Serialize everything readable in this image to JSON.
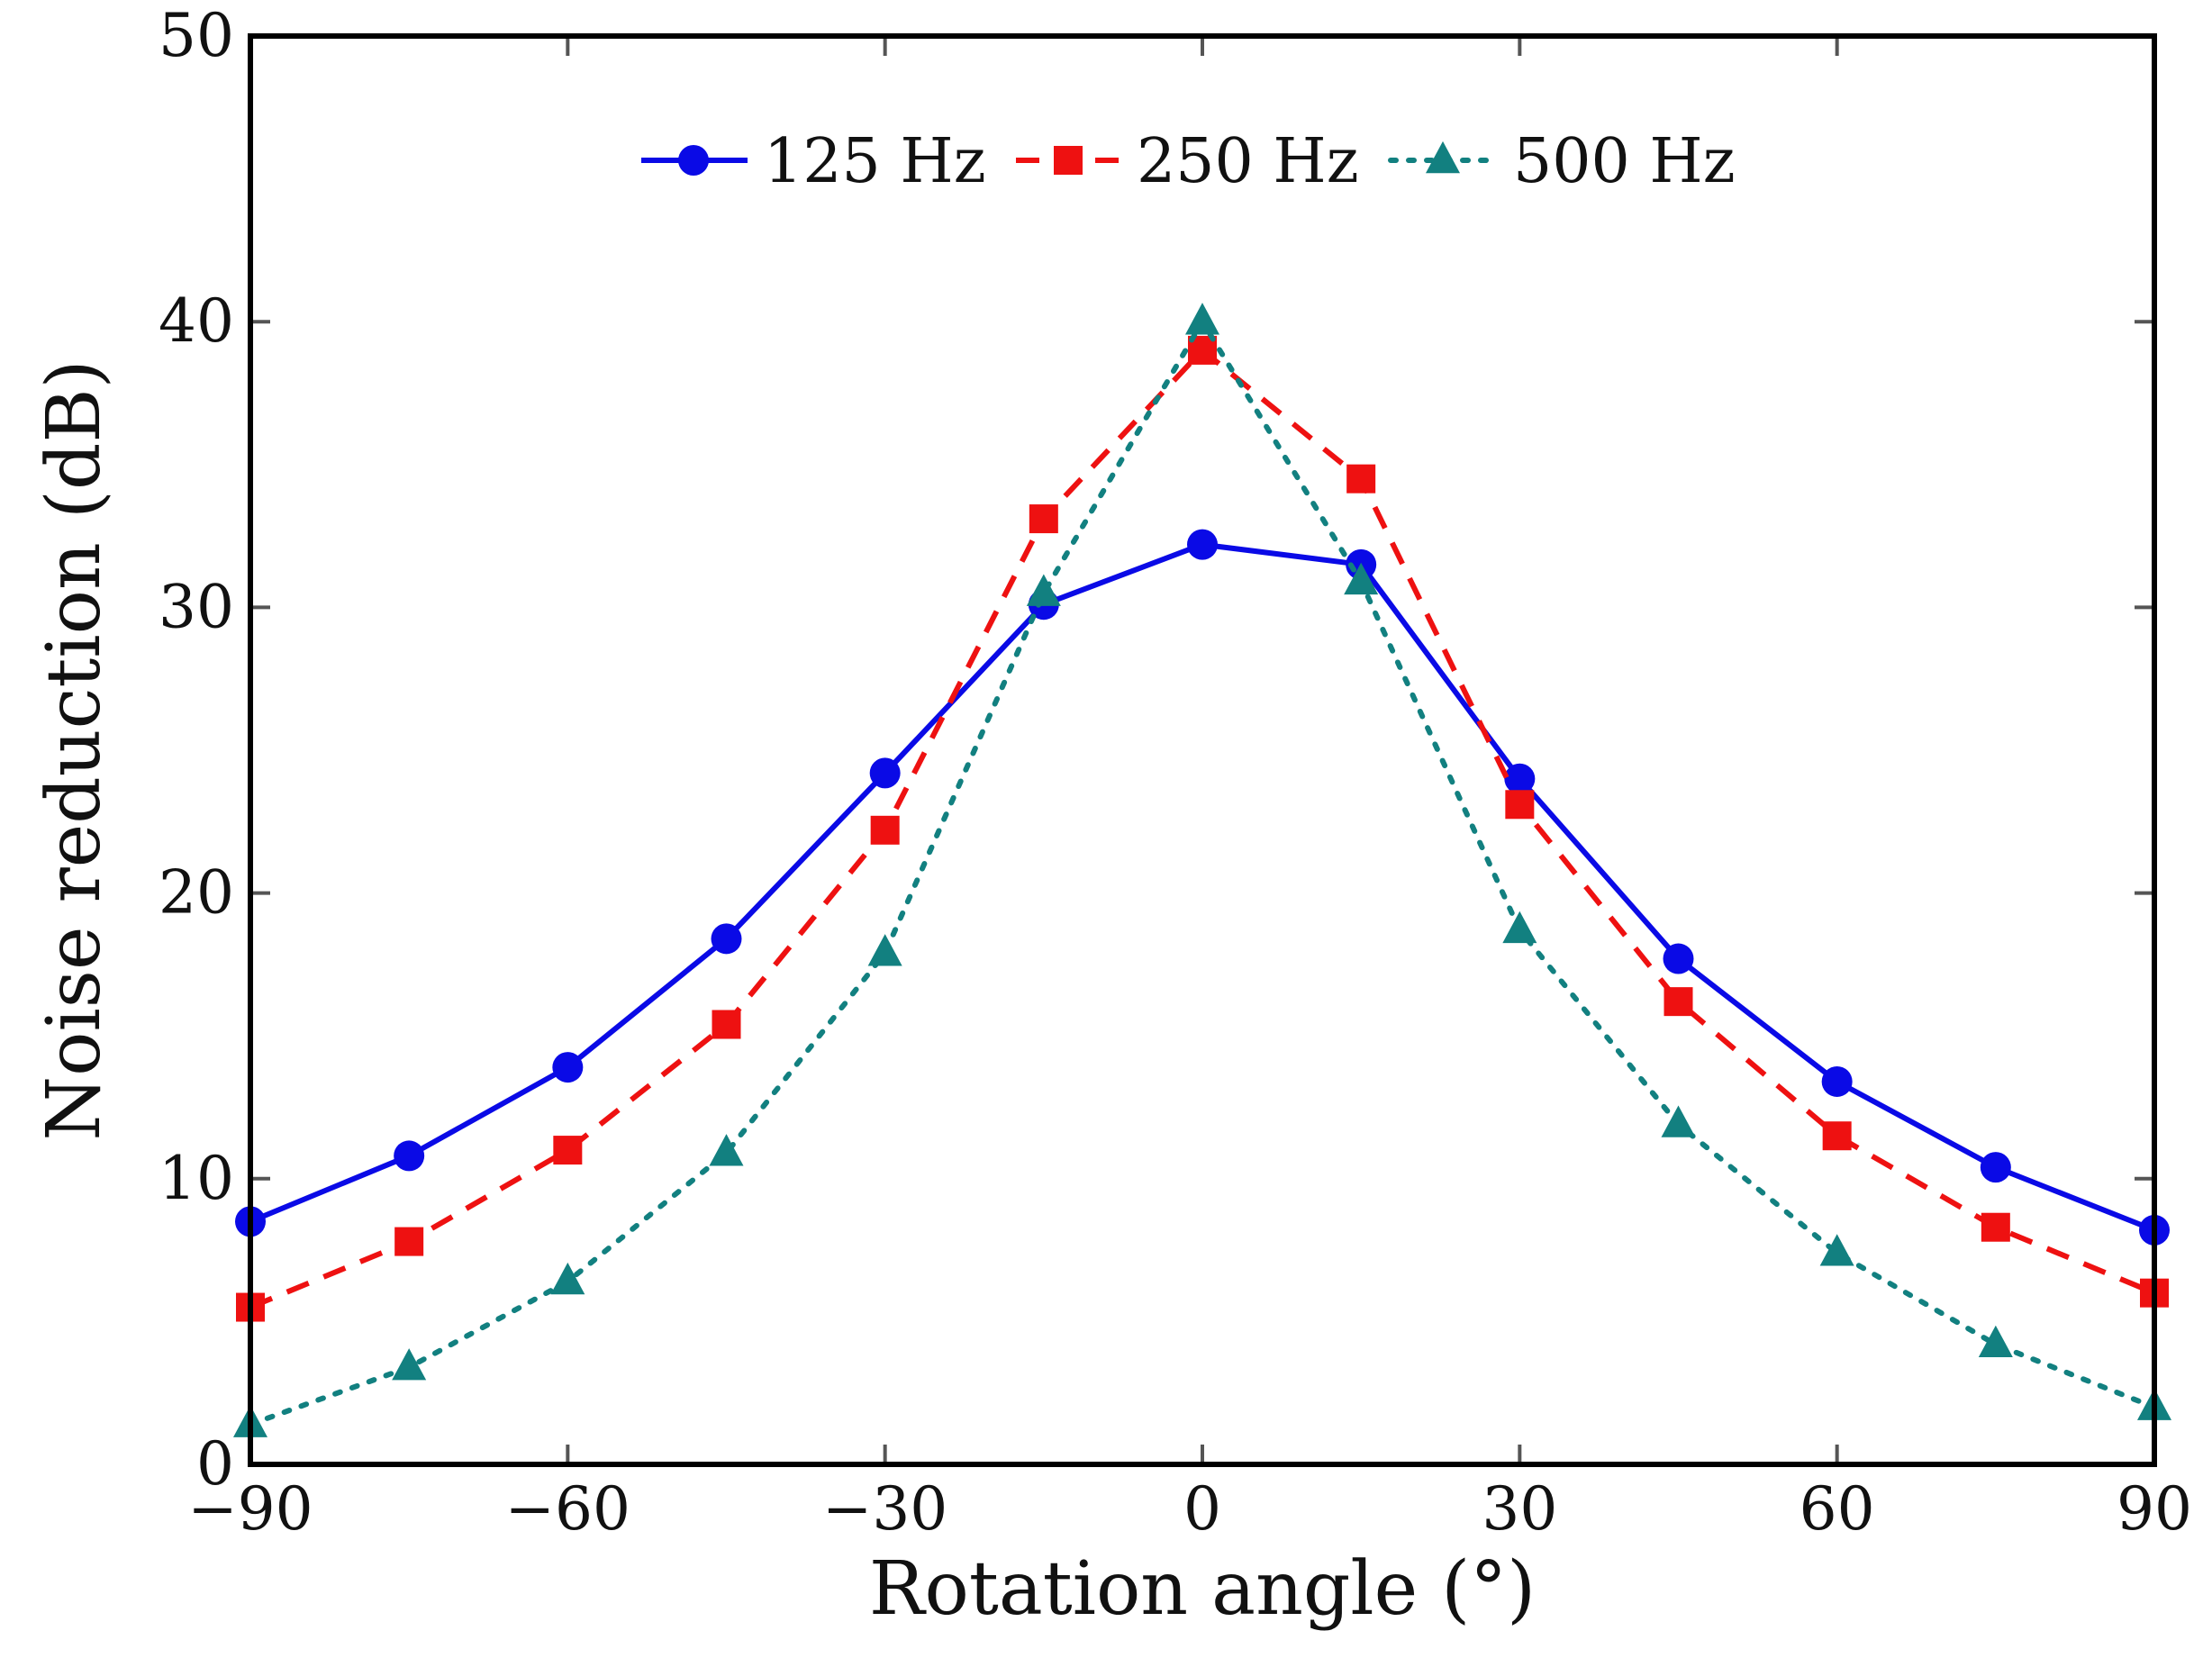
{
  "chart_data": {
    "type": "line",
    "title": "",
    "xlabel": "Rotation angle (°)",
    "ylabel": "Noise reduction (dB)",
    "xlim": [
      -90,
      90
    ],
    "ylim": [
      0,
      50
    ],
    "x": [
      -90,
      -75,
      -60,
      -45,
      -30,
      -15,
      0,
      15,
      30,
      45,
      60,
      75,
      90
    ],
    "x_ticks": [
      -90,
      -60,
      -30,
      0,
      30,
      60,
      90
    ],
    "x_tick_labels": [
      "−90",
      "−60",
      "−30",
      "0",
      "30",
      "60",
      "90"
    ],
    "y_ticks": [
      0,
      10,
      20,
      30,
      40,
      50
    ],
    "y_tick_labels": [
      "0",
      "10",
      "20",
      "30",
      "40",
      "50"
    ],
    "grid": false,
    "legend_position": "top-center",
    "series": [
      {
        "name": "125 Hz",
        "color": "#0a0ae6",
        "line_style": "solid",
        "marker": "circle",
        "values": [
          8.5,
          10.8,
          13.9,
          18.4,
          24.2,
          30.1,
          32.2,
          31.5,
          24.0,
          17.7,
          13.4,
          10.4,
          8.2
        ]
      },
      {
        "name": "250 Hz",
        "color": "#ee1111",
        "line_style": "dashed",
        "marker": "square",
        "values": [
          5.5,
          7.8,
          11.0,
          15.4,
          22.2,
          33.1,
          39.0,
          34.5,
          23.1,
          16.2,
          11.5,
          8.3,
          6.0
        ]
      },
      {
        "name": "500 Hz",
        "color": "#128080",
        "line_style": "dotted",
        "marker": "triangle",
        "values": [
          1.4,
          3.4,
          6.4,
          10.9,
          17.9,
          30.5,
          40.0,
          30.9,
          18.7,
          11.9,
          7.4,
          4.2,
          2.0
        ]
      }
    ]
  }
}
